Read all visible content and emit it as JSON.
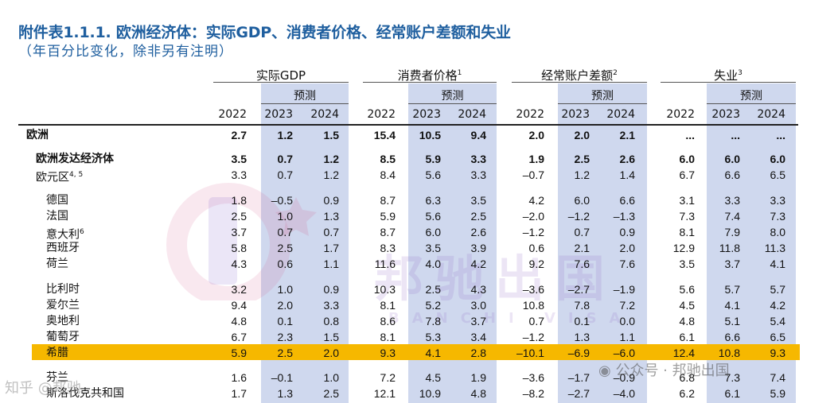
{
  "title": "附件表1.1.1. 欧洲经济体：实际GDP、消费者价格、经常账户差额和失业",
  "subtitle": "（年百分比变化，除非另有注明）",
  "groups": [
    {
      "name": "实际GDP",
      "note": ""
    },
    {
      "name": "消费者价格",
      "note": "1"
    },
    {
      "name": "经常账户差额",
      "note": "2"
    },
    {
      "name": "失业",
      "note": "3"
    }
  ],
  "forecast_label": "预测",
  "years": [
    "2022",
    "2023",
    "2024"
  ],
  "rows": [
    {
      "label": "欧洲",
      "note": "",
      "v": [
        "2.7",
        "1.2",
        "1.5",
        "15.4",
        "10.5",
        "9.4",
        "2.0",
        "2.0",
        "2.1",
        "...",
        "...",
        "..."
      ]
    },
    {
      "label": "欧洲发达经济体",
      "note": "",
      "v": [
        "3.5",
        "0.7",
        "1.2",
        "8.5",
        "5.9",
        "3.3",
        "1.9",
        "2.5",
        "2.6",
        "6.0",
        "6.0",
        "6.0"
      ]
    },
    {
      "label": "欧元区",
      "note": "4, 5",
      "v": [
        "3.3",
        "0.7",
        "1.2",
        "8.4",
        "5.6",
        "3.3",
        "–0.7",
        "1.2",
        "1.4",
        "6.7",
        "6.6",
        "6.5"
      ]
    },
    {
      "label": "德国",
      "note": "",
      "v": [
        "1.8",
        "–0.5",
        "0.9",
        "8.7",
        "6.3",
        "3.5",
        "4.2",
        "6.0",
        "6.6",
        "3.1",
        "3.3",
        "3.3"
      ]
    },
    {
      "label": "法国",
      "note": "",
      "v": [
        "2.5",
        "1.0",
        "1.3",
        "5.9",
        "5.6",
        "2.5",
        "–2.0",
        "–1.2",
        "–1.3",
        "7.3",
        "7.4",
        "7.3"
      ]
    },
    {
      "label": "意大利",
      "note": "6",
      "v": [
        "3.7",
        "0.7",
        "0.7",
        "8.7",
        "6.0",
        "2.6",
        "–1.2",
        "0.7",
        "0.9",
        "8.1",
        "7.9",
        "8.0"
      ]
    },
    {
      "label": "西班牙",
      "note": "",
      "v": [
        "5.8",
        "2.5",
        "1.7",
        "8.3",
        "3.5",
        "3.9",
        "0.6",
        "2.1",
        "2.0",
        "12.9",
        "11.8",
        "11.3"
      ]
    },
    {
      "label": "荷兰",
      "note": "",
      "v": [
        "4.3",
        "0.6",
        "1.1",
        "11.6",
        "4.0",
        "4.2",
        "9.2",
        "7.6",
        "7.6",
        "3.5",
        "3.7",
        "4.1"
      ]
    },
    {
      "label": "比利时",
      "note": "",
      "v": [
        "3.2",
        "1.0",
        "0.9",
        "10.3",
        "2.5",
        "4.3",
        "–3.6",
        "–2.7",
        "–1.9",
        "5.6",
        "5.7",
        "5.7"
      ]
    },
    {
      "label": "爱尔兰",
      "note": "",
      "v": [
        "9.4",
        "2.0",
        "3.3",
        "8.1",
        "5.2",
        "3.0",
        "10.8",
        "7.8",
        "7.2",
        "4.5",
        "4.1",
        "4.2"
      ]
    },
    {
      "label": "奥地利",
      "note": "",
      "v": [
        "4.8",
        "0.1",
        "0.8",
        "8.6",
        "7.8",
        "3.7",
        "0.7",
        "0.1",
        "0.0",
        "4.8",
        "5.1",
        "5.4"
      ]
    },
    {
      "label": "葡萄牙",
      "note": "",
      "v": [
        "6.7",
        "2.3",
        "1.5",
        "8.1",
        "5.3",
        "3.4",
        "–1.2",
        "1.3",
        "1.1",
        "6.1",
        "6.6",
        "6.5"
      ]
    },
    {
      "label": "希腊",
      "note": "",
      "v": [
        "5.9",
        "2.5",
        "2.0",
        "9.3",
        "4.1",
        "2.8",
        "–10.1",
        "–6.9",
        "–6.0",
        "12.4",
        "10.8",
        "9.3"
      ]
    },
    {
      "label": "芬兰",
      "note": "",
      "v": [
        "1.6",
        "–0.1",
        "1.0",
        "7.2",
        "4.5",
        "1.9",
        "–3.6",
        "–1.7",
        "–0.9",
        "6.8",
        "7.3",
        "7.4"
      ]
    },
    {
      "label": "斯洛伐克共和国",
      "note": "",
      "v": [
        "1.7",
        "1.3",
        "2.5",
        "12.1",
        "10.9",
        "4.8",
        "–8.2",
        "–2.7",
        "–4.0",
        "6.2",
        "6.1",
        "5.9"
      ]
    }
  ],
  "highlight_row": "希腊",
  "watermark": {
    "main": "邦驰出国",
    "sub": "BANCHI VISA"
  },
  "overlay_wechat": "公众号 · 邦驰出国",
  "overlay_corner": "知乎 @邦驰"
}
